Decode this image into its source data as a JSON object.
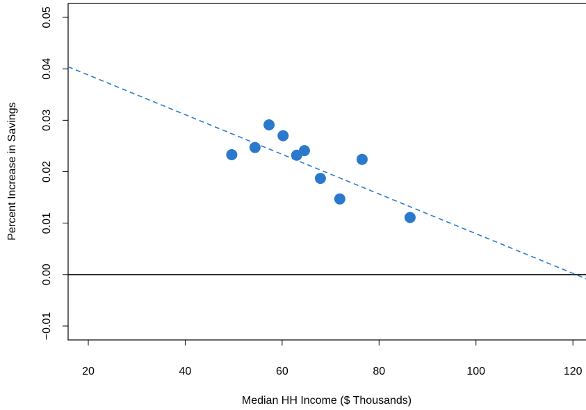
{
  "chart_data": {
    "type": "scatter",
    "x_label": "Median HH Income ($ Thousands)",
    "y_label": "Percent Increase in Savings",
    "x": [
      49.6,
      54.4,
      57.3,
      60.2,
      63.0,
      64.6,
      67.9,
      71.9,
      76.5,
      86.4
    ],
    "values": [
      0.0233,
      0.0247,
      0.0291,
      0.027,
      0.0232,
      0.0241,
      0.0187,
      0.0147,
      0.0224,
      0.0111
    ],
    "color": "#2a79cc",
    "fit_line": {
      "x": [
        15.84,
        122.7
      ],
      "values": [
        0.0404,
        -0.0008
      ],
      "color": "#2a79cc",
      "dashed": true
    },
    "reference_lines": [
      0
    ],
    "xlim": [
      15.84,
      122.7
    ],
    "ylim": [
      -0.0127,
      0.0527
    ],
    "xticks": [
      20,
      40,
      60,
      80,
      100,
      120
    ],
    "yticks": [
      {
        "value": -0.01,
        "label": "−0.01"
      },
      {
        "value": 0,
        "label": "0.00"
      },
      0.01,
      0.02,
      0.03,
      0.04,
      0.05
    ]
  }
}
